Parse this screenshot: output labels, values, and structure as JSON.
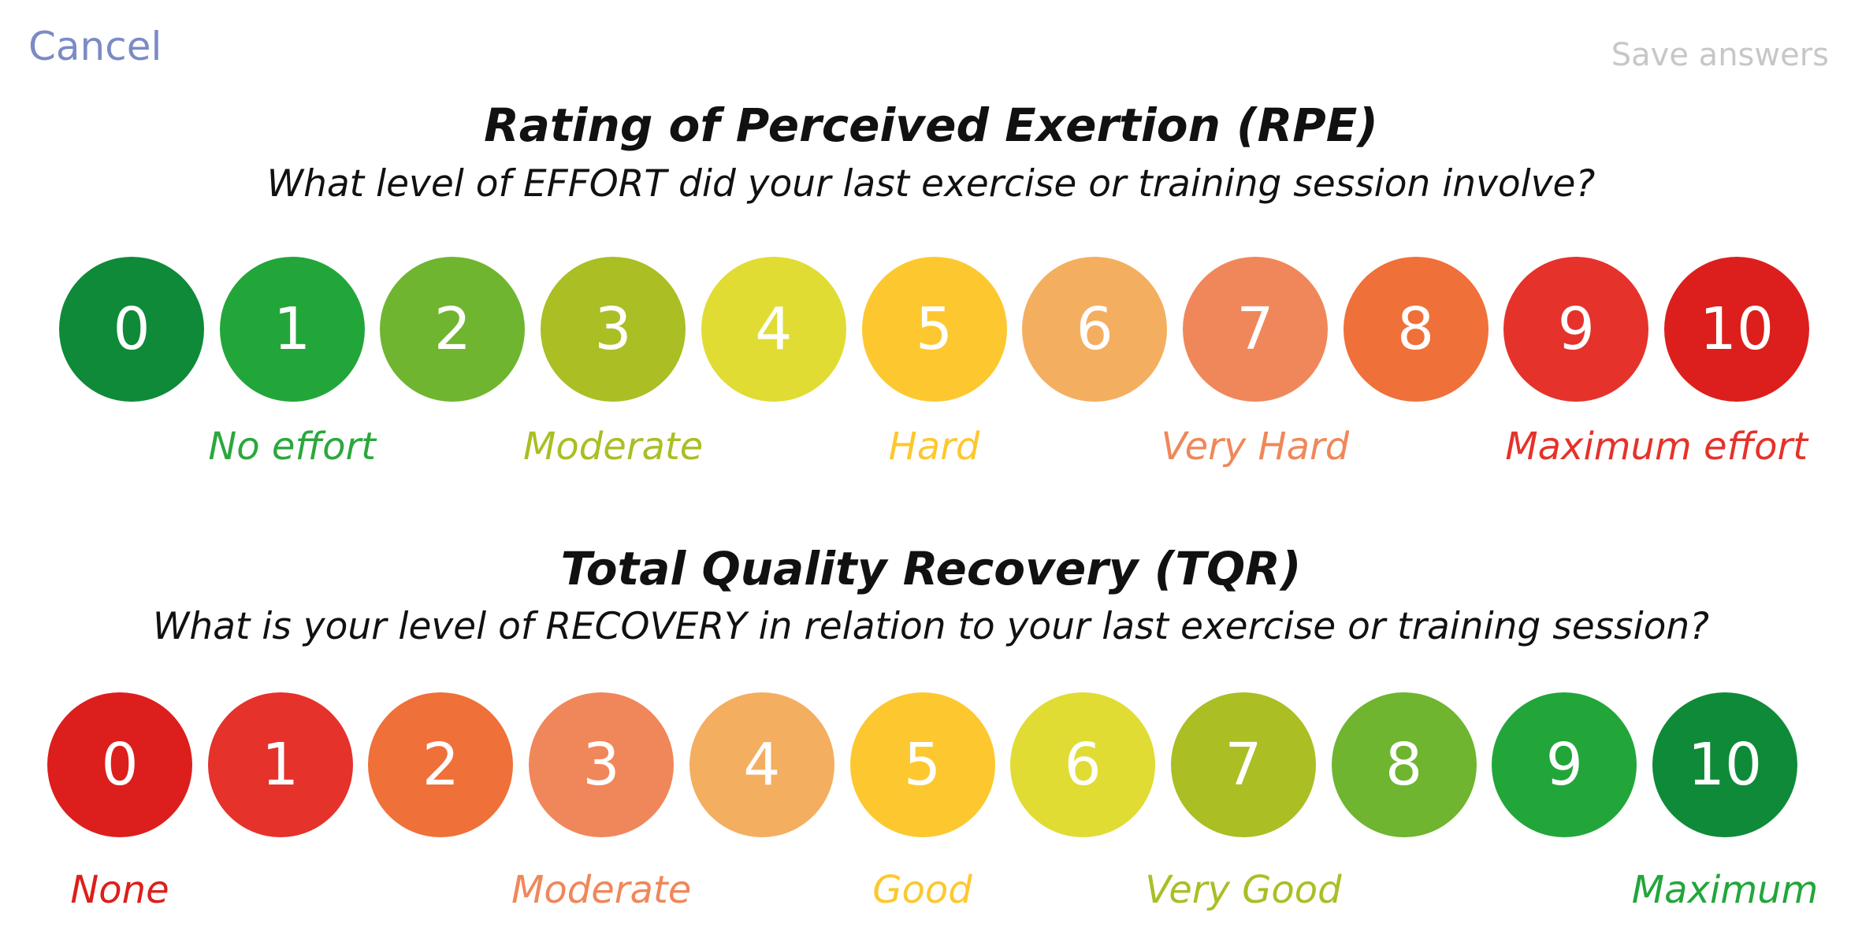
{
  "header": {
    "cancel_label": "Cancel",
    "save_label": "Save answers"
  },
  "rpe": {
    "title": "Rating of Perceived Exertion (RPE)",
    "question": "What level of EFFORT did your last exercise or training session involve?",
    "options": [
      {
        "value": "0",
        "color": "#0f8a38"
      },
      {
        "value": "1",
        "color": "#22a63a"
      },
      {
        "value": "2",
        "color": "#6fb530"
      },
      {
        "value": "3",
        "color": "#abbe24"
      },
      {
        "value": "4",
        "color": "#e0dc33"
      },
      {
        "value": "5",
        "color": "#fdc82f"
      },
      {
        "value": "6",
        "color": "#f4ae60"
      },
      {
        "value": "7",
        "color": "#f0875a"
      },
      {
        "value": "8",
        "color": "#ef7039"
      },
      {
        "value": "9",
        "color": "#e5322b"
      },
      {
        "value": "10",
        "color": "#dc1f1c"
      }
    ],
    "anchors": [
      {
        "label": "No effort",
        "at": "1",
        "color": "#2ba83c"
      },
      {
        "label": "Moderate",
        "at": "3",
        "color": "#abbe24"
      },
      {
        "label": "Hard",
        "at": "5",
        "color": "#fdc82f"
      },
      {
        "label": "Very Hard",
        "at": "7",
        "color": "#f0875a"
      },
      {
        "label": "Maximum effort",
        "at": "9.5",
        "color": "#e5322b"
      }
    ]
  },
  "tqr": {
    "title": "Total Quality Recovery (TQR)",
    "question": "What is your level of RECOVERY in relation to your last exercise or training session?",
    "options": [
      {
        "value": "0",
        "color": "#dc1f1c"
      },
      {
        "value": "1",
        "color": "#e5322b"
      },
      {
        "value": "2",
        "color": "#ef7039"
      },
      {
        "value": "3",
        "color": "#f0875a"
      },
      {
        "value": "4",
        "color": "#f4ae60"
      },
      {
        "value": "5",
        "color": "#fdc82f"
      },
      {
        "value": "6",
        "color": "#e0dc33"
      },
      {
        "value": "7",
        "color": "#abbe24"
      },
      {
        "value": "8",
        "color": "#6fb530"
      },
      {
        "value": "9",
        "color": "#22a63a"
      },
      {
        "value": "10",
        "color": "#0f8a38"
      }
    ],
    "anchors": [
      {
        "label": "None",
        "at": "0",
        "color": "#dc1f1c"
      },
      {
        "label": "Moderate",
        "at": "3",
        "color": "#f0875a"
      },
      {
        "label": "Good",
        "at": "5",
        "color": "#fdc82f"
      },
      {
        "label": "Very Good",
        "at": "7",
        "color": "#abbe24"
      },
      {
        "label": "Maximum",
        "at": "10",
        "color": "#22a63a"
      }
    ]
  }
}
